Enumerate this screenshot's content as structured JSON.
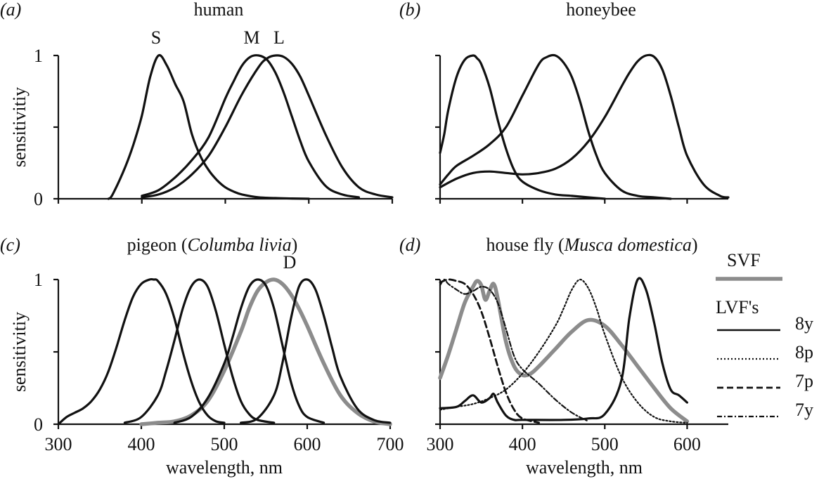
{
  "charts": [
    {
      "type": "line",
      "letter": "(a)",
      "title": "human",
      "ylabel": "sensitivitiy",
      "xlabel": "",
      "xlim": [
        300,
        700
      ],
      "ylim": [
        0,
        1
      ],
      "ytick_labels": [
        "0",
        "1"
      ],
      "xtick_labels": [],
      "series": [
        {
          "name": "S",
          "style": "solid-black",
          "x": [
            360,
            365,
            380,
            390,
            400,
            410,
            420,
            430,
            440,
            450,
            460,
            470,
            480,
            490,
            500,
            510,
            520,
            540,
            560,
            580,
            600
          ],
          "y": [
            0,
            0.03,
            0.22,
            0.38,
            0.58,
            0.85,
            1.0,
            0.93,
            0.8,
            0.68,
            0.45,
            0.3,
            0.2,
            0.13,
            0.08,
            0.05,
            0.03,
            0.01,
            0.005,
            0.002,
            0
          ]
        },
        {
          "name": "M",
          "style": "solid-black",
          "x": [
            400,
            420,
            440,
            460,
            480,
            500,
            510,
            520,
            530,
            540,
            550,
            560,
            570,
            580,
            590,
            600,
            620,
            640,
            660
          ],
          "y": [
            0.02,
            0.06,
            0.15,
            0.27,
            0.43,
            0.7,
            0.82,
            0.93,
            0.99,
            1.0,
            0.97,
            0.88,
            0.74,
            0.57,
            0.4,
            0.26,
            0.09,
            0.03,
            0.01
          ]
        },
        {
          "name": "L",
          "style": "solid-black",
          "x": [
            400,
            420,
            440,
            460,
            480,
            500,
            520,
            540,
            550,
            560,
            570,
            580,
            590,
            600,
            620,
            640,
            660,
            680,
            700
          ],
          "y": [
            0.01,
            0.03,
            0.08,
            0.17,
            0.3,
            0.5,
            0.73,
            0.92,
            0.98,
            1.0,
            0.99,
            0.94,
            0.85,
            0.72,
            0.45,
            0.22,
            0.08,
            0.03,
            0.01
          ]
        }
      ]
    },
    {
      "type": "line",
      "letter": "(b)",
      "title": "honeybee",
      "ylabel": "",
      "xlabel": "",
      "xlim": [
        300,
        650
      ],
      "ylim": [
        0,
        1
      ],
      "ytick_labels": [],
      "xtick_labels": [],
      "series": [
        {
          "name": "",
          "style": "solid-black",
          "x": [
            300,
            305,
            310,
            320,
            330,
            340,
            345,
            350,
            360,
            370,
            380,
            390,
            400,
            420,
            440,
            460,
            480,
            500
          ],
          "y": [
            0.32,
            0.45,
            0.62,
            0.85,
            0.97,
            1.0,
            0.98,
            0.94,
            0.78,
            0.55,
            0.35,
            0.2,
            0.12,
            0.06,
            0.03,
            0.02,
            0.01,
            0
          ]
        },
        {
          "name": "",
          "style": "solid-black",
          "x": [
            300,
            310,
            320,
            340,
            360,
            380,
            400,
            420,
            430,
            440,
            450,
            460,
            470,
            480,
            490,
            500,
            520,
            540,
            560,
            580
          ],
          "y": [
            0.1,
            0.17,
            0.23,
            0.3,
            0.38,
            0.5,
            0.72,
            0.94,
            0.99,
            1.0,
            0.95,
            0.85,
            0.68,
            0.47,
            0.3,
            0.18,
            0.06,
            0.02,
            0.01,
            0
          ]
        },
        {
          "name": "",
          "style": "solid-black",
          "x": [
            300,
            320,
            340,
            360,
            380,
            400,
            420,
            440,
            460,
            480,
            500,
            520,
            530,
            540,
            550,
            560,
            570,
            580,
            590,
            600,
            620,
            640,
            650
          ],
          "y": [
            0.08,
            0.14,
            0.18,
            0.19,
            0.18,
            0.17,
            0.18,
            0.21,
            0.28,
            0.4,
            0.57,
            0.78,
            0.88,
            0.96,
            1.0,
            0.99,
            0.9,
            0.72,
            0.5,
            0.3,
            0.1,
            0.02,
            0.01
          ]
        }
      ]
    },
    {
      "type": "line",
      "letter": "(c)",
      "title": "pigeon (Columba livia)",
      "annotation": "D",
      "ylabel": "sensitivitiy",
      "xlabel": "wavelength, nm",
      "xlim": [
        300,
        700
      ],
      "ylim": [
        0,
        1
      ],
      "ytick_labels": [
        "0",
        "1"
      ],
      "xtick_labels": [
        "300",
        "400",
        "500",
        "600",
        "700"
      ],
      "series": [
        {
          "name": "",
          "style": "solid-black",
          "x": [
            300,
            310,
            320,
            330,
            340,
            350,
            360,
            370,
            380,
            390,
            400,
            410,
            415,
            420,
            430,
            440,
            450,
            460,
            470,
            480,
            490,
            500
          ],
          "y": [
            0,
            0.05,
            0.08,
            0.11,
            0.16,
            0.24,
            0.36,
            0.53,
            0.72,
            0.88,
            0.97,
            1.0,
            1.0,
            0.99,
            0.9,
            0.73,
            0.5,
            0.3,
            0.15,
            0.06,
            0.02,
            0.01
          ]
        },
        {
          "name": "",
          "style": "solid-black",
          "x": [
            380,
            400,
            420,
            430,
            440,
            450,
            460,
            470,
            480,
            490,
            500,
            510,
            520,
            530,
            540,
            560
          ],
          "y": [
            0.01,
            0.05,
            0.2,
            0.37,
            0.58,
            0.8,
            0.95,
            1.0,
            0.95,
            0.78,
            0.55,
            0.33,
            0.16,
            0.07,
            0.03,
            0.01
          ]
        },
        {
          "name": "",
          "style": "solid-black",
          "x": [
            440,
            460,
            480,
            500,
            510,
            520,
            530,
            540,
            550,
            560,
            570,
            580,
            590,
            600,
            620
          ],
          "y": [
            0.01,
            0.05,
            0.18,
            0.42,
            0.6,
            0.8,
            0.95,
            1.0,
            0.96,
            0.8,
            0.55,
            0.3,
            0.13,
            0.05,
            0.01
          ]
        },
        {
          "name": "D",
          "style": "gray-thick",
          "x": [
            400,
            420,
            440,
            460,
            480,
            500,
            520,
            530,
            540,
            550,
            560,
            570,
            580,
            590,
            600,
            620,
            640,
            660,
            680,
            700
          ],
          "y": [
            0,
            0.01,
            0.02,
            0.06,
            0.16,
            0.37,
            0.64,
            0.8,
            0.92,
            0.98,
            1.0,
            0.97,
            0.9,
            0.8,
            0.68,
            0.42,
            0.2,
            0.08,
            0.02,
            0
          ]
        },
        {
          "name": "",
          "style": "solid-black",
          "x": [
            520,
            540,
            560,
            570,
            580,
            590,
            600,
            610,
            620,
            630,
            640,
            660,
            680,
            700
          ],
          "y": [
            0.01,
            0.04,
            0.2,
            0.42,
            0.72,
            0.95,
            1.0,
            0.93,
            0.75,
            0.53,
            0.33,
            0.11,
            0.03,
            0.01
          ]
        }
      ]
    },
    {
      "type": "line",
      "letter": "(d)",
      "title": "house fly (Musca domestica)",
      "ylabel": "",
      "xlabel": "wavelength, nm",
      "xlim": [
        300,
        650
      ],
      "ylim": [
        0,
        1
      ],
      "ytick_labels": [],
      "xtick_labels": [
        "300",
        "400",
        "500",
        "600"
      ],
      "legend_placement": "right",
      "legend": {
        "group1": "SVF",
        "group2": "LVF's",
        "entries": [
          {
            "label": "8y",
            "style": "solid"
          },
          {
            "label": "8p",
            "style": "dotted"
          },
          {
            "label": "7p",
            "style": "dashed"
          },
          {
            "label": "7y",
            "style": "dashdot"
          }
        ]
      },
      "series": [
        {
          "name": "SVF",
          "style": "gray-thick",
          "x": [
            300,
            310,
            320,
            330,
            340,
            345,
            350,
            355,
            360,
            365,
            370,
            380,
            390,
            400,
            410,
            420,
            440,
            460,
            480,
            500,
            520,
            540,
            560,
            580,
            600
          ],
          "y": [
            0.32,
            0.48,
            0.66,
            0.84,
            0.95,
            0.99,
            0.96,
            0.86,
            0.92,
            0.97,
            0.87,
            0.57,
            0.4,
            0.34,
            0.35,
            0.4,
            0.52,
            0.64,
            0.72,
            0.68,
            0.55,
            0.4,
            0.25,
            0.11,
            0.02
          ]
        },
        {
          "name": "8y",
          "style": "solid-black",
          "x": [
            300,
            320,
            330,
            340,
            350,
            360,
            365,
            370,
            380,
            390,
            400,
            450,
            480,
            500,
            520,
            530,
            540,
            550,
            560,
            570,
            580,
            590,
            600
          ],
          "y": [
            0.11,
            0.12,
            0.16,
            0.2,
            0.15,
            0.18,
            0.21,
            0.15,
            0.06,
            0.03,
            0.03,
            0.03,
            0.04,
            0.07,
            0.3,
            0.74,
            1.0,
            0.93,
            0.7,
            0.42,
            0.24,
            0.2,
            0.15
          ]
        },
        {
          "name": "8p",
          "style": "dotted",
          "x": [
            300,
            320,
            340,
            360,
            380,
            400,
            420,
            440,
            450,
            460,
            470,
            480,
            490,
            500,
            520,
            540,
            560,
            580,
            600
          ],
          "y": [
            0.1,
            0.12,
            0.14,
            0.18,
            0.24,
            0.35,
            0.5,
            0.68,
            0.8,
            0.93,
            1.0,
            0.94,
            0.8,
            0.62,
            0.33,
            0.15,
            0.05,
            0.02,
            0.01
          ]
        },
        {
          "name": "7p",
          "style": "dashed",
          "x": [
            300,
            310,
            320,
            330,
            340,
            350,
            360,
            370,
            380,
            390,
            400,
            420
          ],
          "y": [
            0.98,
            1.0,
            0.99,
            0.97,
            0.9,
            0.78,
            0.6,
            0.4,
            0.22,
            0.1,
            0.04,
            0.01
          ]
        },
        {
          "name": "7y",
          "style": "dashdot",
          "x": [
            300,
            305,
            310,
            320,
            330,
            340,
            350,
            360,
            370,
            380,
            390,
            400,
            420,
            440,
            460,
            480
          ],
          "y": [
            0.96,
            1.0,
            0.97,
            0.93,
            0.9,
            0.92,
            0.95,
            0.93,
            0.84,
            0.66,
            0.47,
            0.38,
            0.28,
            0.17,
            0.08,
            0.02
          ]
        }
      ]
    }
  ],
  "top_annotations": [
    "S",
    "M",
    "L"
  ],
  "chart_data": [
    {
      "type": "line",
      "title": "human",
      "xlim": [
        300,
        700
      ],
      "ylim": [
        0,
        1
      ],
      "ylabel": "sensitivitiy",
      "series_names": [
        "S",
        "M",
        "L"
      ]
    },
    {
      "type": "line",
      "title": "honeybee",
      "xlim": [
        300,
        650
      ],
      "ylim": [
        0,
        1
      ]
    },
    {
      "type": "line",
      "title": "pigeon (Columba livia)",
      "xlim": [
        300,
        700
      ],
      "ylim": [
        0,
        1
      ],
      "ylabel": "sensitivitiy",
      "xlabel": "wavelength, nm"
    },
    {
      "type": "line",
      "title": "house fly (Musca domestica)",
      "xlim": [
        300,
        650
      ],
      "ylim": [
        0,
        1
      ],
      "xlabel": "wavelength, nm",
      "series_names": [
        "SVF",
        "8y",
        "8p",
        "7p",
        "7y"
      ]
    }
  ]
}
